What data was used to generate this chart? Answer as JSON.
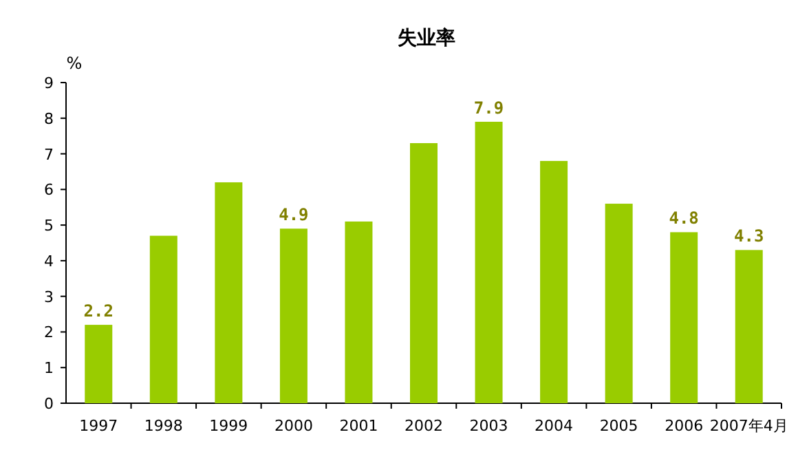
{
  "chart_data": {
    "type": "bar",
    "title": "失业率",
    "ylabel": "%",
    "categories": [
      "1997",
      "1998",
      "1999",
      "2000",
      "2001",
      "2002",
      "2003",
      "2004",
      "2005",
      "2006",
      "2007年4月"
    ],
    "values": [
      2.2,
      4.7,
      6.2,
      4.9,
      5.1,
      7.3,
      7.9,
      6.8,
      5.6,
      4.8,
      4.3
    ],
    "value_labels": [
      "2.2",
      null,
      null,
      "4.9",
      null,
      null,
      "7.9",
      null,
      null,
      "4.8",
      "4.3"
    ],
    "color": "#99cc00",
    "ylim": [
      0,
      9
    ],
    "yticks": [
      0,
      1,
      2,
      3,
      4,
      5,
      6,
      7,
      8,
      9
    ],
    "grid": false
  }
}
